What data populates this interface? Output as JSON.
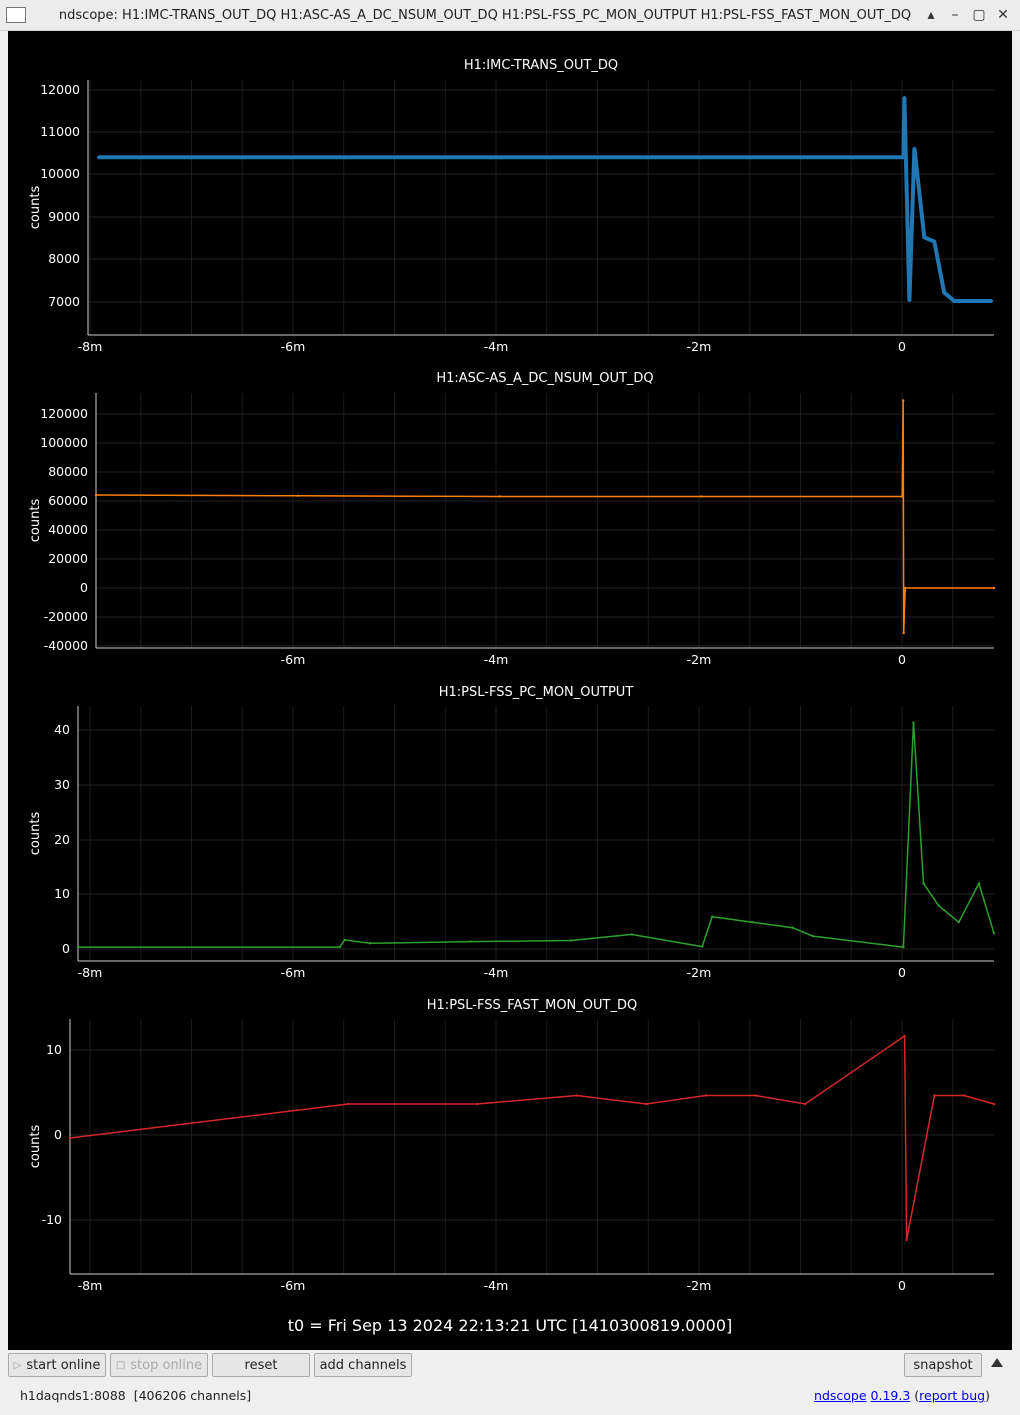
{
  "window": {
    "title": "ndscope: H1:IMC-TRANS_OUT_DQ H1:ASC-AS_A_DC_NSUM_OUT_DQ H1:PSL-FSS_PC_MON_OUTPUT H1:PSL-FSS_FAST_MON_OUT_DQ",
    "buttons": [
      "▴",
      "–",
      "▢",
      "✕"
    ]
  },
  "plots": [
    {
      "title": "H1:IMC-TRANS_OUT_DQ",
      "ylabel": "counts",
      "yticks": [
        "12000",
        "11000",
        "10000",
        "9000",
        "8000",
        "7000"
      ],
      "xticks": [
        "-8m",
        "-6m",
        "-4m",
        "-2m",
        "0"
      ],
      "color": "#1f77b4"
    },
    {
      "title": "H1:ASC-AS_A_DC_NSUM_OUT_DQ",
      "ylabel": "counts",
      "yticks": [
        "120000",
        "100000",
        "80000",
        "60000",
        "40000",
        "20000",
        "0",
        "-20000",
        "-40000"
      ],
      "xticks": [
        "-6m",
        "-4m",
        "-2m",
        "0"
      ],
      "color": "#ff7f0e"
    },
    {
      "title": "H1:PSL-FSS_PC_MON_OUTPUT",
      "ylabel": "counts",
      "yticks": [
        "40",
        "30",
        "20",
        "10",
        "0"
      ],
      "xticks": [
        "-8m",
        "-6m",
        "-4m",
        "-2m",
        "0"
      ],
      "color": "#2ca02c"
    },
    {
      "title": "H1:PSL-FSS_FAST_MON_OUT_DQ",
      "ylabel": "counts",
      "yticks": [
        "10",
        "0",
        "-10"
      ],
      "xticks": [
        "-8m",
        "-6m",
        "-4m",
        "-2m",
        "0"
      ],
      "color": "#d62728"
    }
  ],
  "t0": "t0 = Fri Sep 13 2024 22:13:21 UTC [1410300819.0000]",
  "toolbar": {
    "start_online": "start online",
    "stop_online": "stop online",
    "reset": "reset",
    "add_channels": "add channels",
    "snapshot": "snapshot"
  },
  "status": {
    "server": "h1daqnds1:8088",
    "channels": "[406206 channels]",
    "app_link": "ndscope",
    "version_link": "0.19.3",
    "bug_link": "report bug"
  },
  "chart_data": [
    {
      "type": "line",
      "title": "H1:IMC-TRANS_OUT_DQ",
      "ylabel": "counts",
      "xlim": [
        -8.2,
        0.9
      ],
      "ylim": [
        6200,
        12200
      ],
      "x": [
        -8.1,
        -6,
        -4,
        -2,
        -0.01,
        0.0,
        0.05,
        0.1,
        0.2,
        0.3,
        0.4,
        0.5,
        0.6,
        0.7,
        0.8,
        0.88
      ],
      "values": [
        10380,
        10380,
        10380,
        10380,
        10380,
        11800,
        7000,
        10600,
        8500,
        8400,
        7200,
        7000,
        7000,
        7000,
        7000,
        7000
      ],
      "series": [
        {
          "name": "H1:IMC-TRANS_OUT_DQ",
          "values": [
            10380,
            10380,
            10380,
            10380,
            10380,
            11800,
            7000,
            10600,
            8500,
            8400,
            7200,
            7000,
            7000,
            7000,
            7000,
            7000
          ]
        }
      ]
    },
    {
      "type": "line",
      "title": "H1:ASC-AS_A_DC_NSUM_OUT_DQ",
      "ylabel": "counts",
      "xlim": [
        -8.0,
        0.9
      ],
      "ylim": [
        -40000,
        130000
      ],
      "x": [
        -8.0,
        -6,
        -4,
        -2,
        -0.01,
        0.0,
        0.005,
        0.02,
        0.9
      ],
      "values": [
        62000,
        61500,
        61000,
        61000,
        61000,
        125000,
        -30000,
        0,
        0
      ],
      "series": [
        {
          "name": "H1:ASC-AS_A_DC_NSUM_OUT_DQ",
          "values": [
            62000,
            61500,
            61000,
            61000,
            61000,
            125000,
            -30000,
            0,
            0
          ]
        }
      ]
    },
    {
      "type": "line",
      "title": "H1:PSL-FSS_PC_MON_OUTPUT",
      "ylabel": "counts",
      "xlim": [
        -8.2,
        0.9
      ],
      "ylim": [
        -2,
        44
      ],
      "x": [
        -8.2,
        -5.6,
        -5.55,
        -5.3,
        -4.3,
        -3.3,
        -2.7,
        -2.0,
        -1.9,
        -1.5,
        -1.1,
        -0.9,
        0.0,
        0.1,
        0.2,
        0.35,
        0.55,
        0.75,
        0.9
      ],
      "values": [
        0.5,
        0.5,
        1.8,
        1.2,
        1.5,
        1.7,
        2.8,
        0.6,
        6,
        5,
        4,
        2.5,
        0.5,
        41,
        12,
        8,
        5,
        12,
        3
      ],
      "series": [
        {
          "name": "H1:PSL-FSS_PC_MON_OUTPUT",
          "values": [
            0.5,
            0.5,
            1.8,
            1.2,
            1.5,
            1.7,
            2.8,
            0.6,
            6,
            5,
            4,
            2.5,
            0.5,
            41,
            12,
            8,
            5,
            12,
            3
          ]
        }
      ]
    },
    {
      "type": "line",
      "title": "H1:PSL-FSS_FAST_MON_OUT_DQ",
      "ylabel": "counts",
      "xlim": [
        -8.4,
        0.9
      ],
      "ylim": [
        -16,
        14
      ],
      "x": [
        -8.4,
        -5.6,
        -4.3,
        -3.3,
        -2.6,
        -2.0,
        -1.5,
        -1.0,
        0.0,
        0.02,
        0.3,
        0.6,
        0.9
      ],
      "values": [
        0,
        4,
        4,
        5,
        4,
        5,
        5,
        4,
        12,
        -12,
        5,
        5,
        4
      ],
      "series": [
        {
          "name": "H1:PSL-FSS_FAST_MON_OUT_DQ",
          "values": [
            0,
            4,
            4,
            5,
            4,
            5,
            5,
            4,
            12,
            -12,
            5,
            5,
            4
          ]
        }
      ]
    }
  ]
}
